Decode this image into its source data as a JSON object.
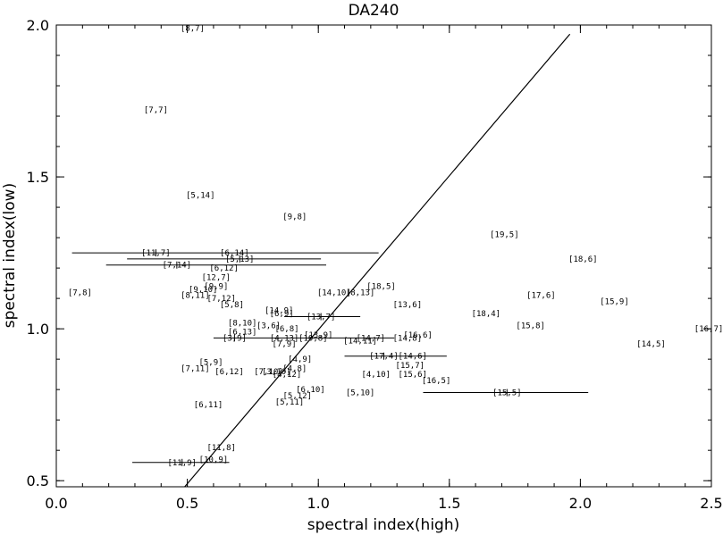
{
  "chart_data": {
    "type": "scatter",
    "title": "DA240",
    "xlabel": "spectral index(high)",
    "ylabel": "spectral index(low)",
    "xlim": [
      0.0,
      2.5
    ],
    "ylim": [
      0.48,
      2.0
    ],
    "xticks": [
      0.0,
      0.5,
      1.0,
      1.5,
      2.0,
      2.5
    ],
    "xtick_labels": [
      "0.0",
      "0.5",
      "1.0",
      "1.5",
      "2.0",
      "2.5"
    ],
    "yticks": [
      0.5,
      1.0,
      1.5,
      2.0
    ],
    "ytick_labels": [
      "0.5",
      "1.0",
      "1.5",
      "2.0"
    ],
    "grid": false,
    "reference_line": {
      "x": [
        0.49,
        1.96
      ],
      "y": [
        0.48,
        1.97
      ]
    },
    "points": [
      {
        "label": "[8,7]",
        "x": 0.52,
        "y": 1.99
      },
      {
        "label": "[7,7]",
        "x": 0.38,
        "y": 1.72
      },
      {
        "label": "[5,14]",
        "x": 0.55,
        "y": 1.44
      },
      {
        "label": "[9,8]",
        "x": 0.91,
        "y": 1.37
      },
      {
        "label": "[11,7]",
        "x": 0.38,
        "y": 1.25,
        "xerr": [
          0.06,
          1.23
        ]
      },
      {
        "label": "[6,14]",
        "x": 0.68,
        "y": 1.25
      },
      {
        "label": "[7,14]",
        "x": 0.46,
        "y": 1.21,
        "xerr": [
          0.19,
          1.03
        ]
      },
      {
        "label": "[6,12]",
        "x": 0.64,
        "y": 1.2
      },
      {
        "label": "[5,13]",
        "x": 0.7,
        "y": 1.23,
        "xerr": [
          0.27,
          1.01
        ]
      },
      {
        "label": "[12,7]",
        "x": 0.61,
        "y": 1.17
      },
      {
        "label": "[9,10]",
        "x": 0.56,
        "y": 1.13
      },
      {
        "label": "[8,11]",
        "x": 0.53,
        "y": 1.11
      },
      {
        "label": "[7,12]",
        "x": 0.63,
        "y": 1.1
      },
      {
        "label": "[5,8]",
        "x": 0.67,
        "y": 1.08
      },
      {
        "label": "[9,9]",
        "x": 0.61,
        "y": 1.14
      },
      {
        "label": "[7,8]",
        "x": 0.09,
        "y": 1.12
      },
      {
        "label": "[14,10]",
        "x": 1.06,
        "y": 1.12
      },
      {
        "label": "[8,13]",
        "x": 1.16,
        "y": 1.12
      },
      {
        "label": "[18,5]",
        "x": 1.24,
        "y": 1.14
      },
      {
        "label": "[13,6]",
        "x": 1.34,
        "y": 1.08
      },
      {
        "label": "[19,5]",
        "x": 1.71,
        "y": 1.31
      },
      {
        "label": "[18,6]",
        "x": 2.01,
        "y": 1.23
      },
      {
        "label": "[17,6]",
        "x": 1.85,
        "y": 1.11
      },
      {
        "label": "[15,9]",
        "x": 2.13,
        "y": 1.09
      },
      {
        "label": "[18,4]",
        "x": 1.64,
        "y": 1.05
      },
      {
        "label": "[15,8]",
        "x": 1.81,
        "y": 1.01
      },
      {
        "label": "[16,7]",
        "x": 2.49,
        "y": 1.0
      },
      {
        "label": "[14,5]",
        "x": 2.27,
        "y": 0.95
      },
      {
        "label": "[14,9]",
        "x": 0.85,
        "y": 1.06
      },
      {
        "label": "[6,9]",
        "x": 0.86,
        "y": 1.05
      },
      {
        "label": "[13,7]",
        "x": 1.01,
        "y": 1.04,
        "xerr": [
          0.87,
          1.16
        ]
      },
      {
        "label": "[8,10]",
        "x": 0.71,
        "y": 1.02
      },
      {
        "label": "[3,6]",
        "x": 0.81,
        "y": 1.01
      },
      {
        "label": "[6,8]",
        "x": 0.88,
        "y": 1.0
      },
      {
        "label": "[6,13]",
        "x": 0.71,
        "y": 0.99
      },
      {
        "label": "[3,9]",
        "x": 0.68,
        "y": 0.97,
        "xerr": [
          0.6,
          1.29
        ]
      },
      {
        "label": "[4,13]",
        "x": 0.87,
        "y": 0.97
      },
      {
        "label": "[7,9]",
        "x": 0.87,
        "y": 0.95
      },
      {
        "label": "[10,8]",
        "x": 0.98,
        "y": 0.97
      },
      {
        "label": "[13,9]",
        "x": 1.0,
        "y": 0.98
      },
      {
        "label": "[14,7]",
        "x": 1.2,
        "y": 0.97
      },
      {
        "label": "[14,11]",
        "x": 1.16,
        "y": 0.96
      },
      {
        "label": "[14,8]",
        "x": 1.34,
        "y": 0.97
      },
      {
        "label": "[16,6]",
        "x": 1.38,
        "y": 0.98
      },
      {
        "label": "[17,4]",
        "x": 1.25,
        "y": 0.91,
        "xerr": [
          1.1,
          1.49
        ]
      },
      {
        "label": "[14,6]",
        "x": 1.36,
        "y": 0.91
      },
      {
        "label": "[15,7]",
        "x": 1.35,
        "y": 0.88
      },
      {
        "label": "[15,6]",
        "x": 1.36,
        "y": 0.85
      },
      {
        "label": "[16,5]",
        "x": 1.45,
        "y": 0.83
      },
      {
        "label": "[4,10]",
        "x": 1.22,
        "y": 0.85
      },
      {
        "label": "[4,9]",
        "x": 0.93,
        "y": 0.9
      },
      {
        "label": "[4,8]",
        "x": 0.91,
        "y": 0.87
      },
      {
        "label": "[3,10]",
        "x": 0.84,
        "y": 0.86
      },
      {
        "label": "[4,12]",
        "x": 0.88,
        "y": 0.85
      },
      {
        "label": "[7,10]",
        "x": 0.81,
        "y": 0.86
      },
      {
        "label": "[5,9]",
        "x": 0.59,
        "y": 0.89
      },
      {
        "label": "[7,11]",
        "x": 0.53,
        "y": 0.87
      },
      {
        "label": "[6,12]",
        "x": 0.66,
        "y": 0.86
      },
      {
        "label": "[6,10]",
        "x": 0.97,
        "y": 0.8
      },
      {
        "label": "[5,12]",
        "x": 0.92,
        "y": 0.78
      },
      {
        "label": "[5,11]",
        "x": 0.89,
        "y": 0.76
      },
      {
        "label": "[5,10]",
        "x": 1.16,
        "y": 0.79
      },
      {
        "label": "[15,5]",
        "x": 1.72,
        "y": 0.79,
        "xerr": [
          1.4,
          2.03
        ]
      },
      {
        "label": "[6,11]",
        "x": 0.58,
        "y": 0.75
      },
      {
        "label": "[11,8]",
        "x": 0.63,
        "y": 0.61
      },
      {
        "label": "[10,9]",
        "x": 0.6,
        "y": 0.57
      },
      {
        "label": "[11,9]",
        "x": 0.48,
        "y": 0.56,
        "xerr": [
          0.29,
          0.66
        ]
      }
    ]
  }
}
